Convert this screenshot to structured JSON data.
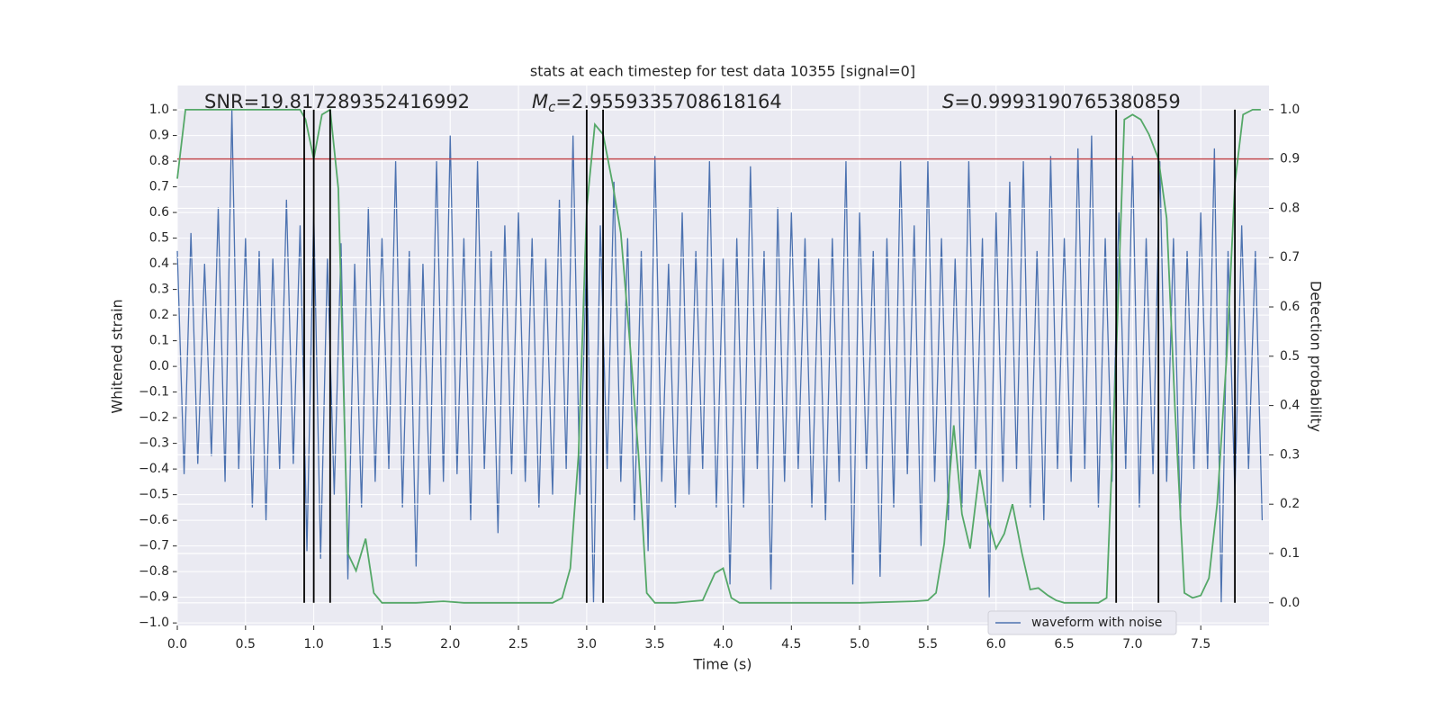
{
  "chart_data": {
    "type": "line",
    "title": "stats at each timestep for test data 10355 [signal=0]",
    "xlabel": "Time (s)",
    "ylabel": "Whitened strain",
    "y2label": "Detection probability",
    "annotations": [
      "SNR=19.817289352416992",
      {
        "symbol": "M",
        "subscript": "c",
        "text": "=2.9559335708618164"
      },
      {
        "symbol": "S",
        "text": "=0.9993190765380859"
      }
    ],
    "xlim": [
      0,
      8
    ],
    "ylim": [
      -1.01,
      1.095
    ],
    "y2lim": [
      -0.046,
      1.049
    ],
    "xticks": [
      {
        "value": 0,
        "label": "0.0"
      },
      0.5,
      {
        "value": 1,
        "label": "1.0"
      },
      1.5,
      {
        "value": 2,
        "label": "2.0"
      },
      2.5,
      {
        "value": 3,
        "label": "3.0"
      },
      3.5,
      {
        "value": 4,
        "label": "4.0"
      },
      4.5,
      {
        "value": 5,
        "label": "5.0"
      },
      5.5,
      {
        "value": 6,
        "label": "6.0"
      },
      6.5,
      {
        "value": 7,
        "label": "7.0"
      },
      7.5
    ],
    "yticks": [
      {
        "value": -1,
        "label": "−1.0"
      },
      {
        "value": -0.9,
        "label": "−0.9"
      },
      {
        "value": -0.8,
        "label": "−0.8"
      },
      {
        "value": -0.7,
        "label": "−0.7"
      },
      {
        "value": -0.6,
        "label": "−0.6"
      },
      {
        "value": -0.5,
        "label": "−0.5"
      },
      {
        "value": -0.4,
        "label": "−0.4"
      },
      {
        "value": -0.3,
        "label": "−0.3"
      },
      {
        "value": -0.2,
        "label": "−0.2"
      },
      {
        "value": -0.1,
        "label": "−0.1"
      },
      {
        "value": 0,
        "label": "0.0"
      },
      0.1,
      0.2,
      0.3,
      0.4,
      0.5,
      0.6,
      0.7,
      0.8,
      0.9,
      {
        "value": 1,
        "label": "1.0"
      }
    ],
    "y2ticks": [
      {
        "value": 0,
        "label": "0.0"
      },
      0.1,
      0.2,
      0.3,
      0.4,
      0.5,
      0.6,
      0.7,
      0.8,
      0.9,
      {
        "value": 1,
        "label": "1.0"
      }
    ],
    "grid": true,
    "legend": "lower right",
    "series": [
      {
        "name": "waveform with noise",
        "color": "#4c72b0",
        "x": [
          0,
          0.05,
          0.1,
          0.15,
          0.2,
          0.25,
          0.3,
          0.35,
          0.4,
          0.45,
          0.5,
          0.55,
          0.6,
          0.65,
          0.7,
          0.75,
          0.8,
          0.85,
          0.9,
          0.95,
          1,
          1.05,
          1.1,
          1.15,
          1.2,
          1.25,
          1.3,
          1.35,
          1.4,
          1.45,
          1.5,
          1.55,
          1.6,
          1.65,
          1.7,
          1.75,
          1.8,
          1.85,
          1.9,
          1.95,
          2,
          2.05,
          2.1,
          2.15,
          2.2,
          2.25,
          2.3,
          2.35,
          2.4,
          2.45,
          2.5,
          2.55,
          2.6,
          2.65,
          2.7,
          2.75,
          2.8,
          2.85,
          2.9,
          2.95,
          3,
          3.05,
          3.1,
          3.15,
          3.2,
          3.25,
          3.3,
          3.35,
          3.4,
          3.45,
          3.5,
          3.55,
          3.6,
          3.65,
          3.7,
          3.75,
          3.8,
          3.85,
          3.9,
          3.95,
          4,
          4.05,
          4.1,
          4.15,
          4.2,
          4.25,
          4.3,
          4.35,
          4.4,
          4.45,
          4.5,
          4.55,
          4.6,
          4.65,
          4.7,
          4.75,
          4.8,
          4.85,
          4.9,
          4.95,
          5,
          5.05,
          5.1,
          5.15,
          5.2,
          5.25,
          5.3,
          5.35,
          5.4,
          5.45,
          5.5,
          5.55,
          5.6,
          5.65,
          5.7,
          5.75,
          5.8,
          5.85,
          5.9,
          5.95,
          6,
          6.05,
          6.1,
          6.15,
          6.2,
          6.25,
          6.3,
          6.35,
          6.4,
          6.45,
          6.5,
          6.55,
          6.6,
          6.65,
          6.7,
          6.75,
          6.8,
          6.85,
          6.9,
          6.95,
          7,
          7.05,
          7.1,
          7.15,
          7.2,
          7.25,
          7.3,
          7.35,
          7.4,
          7.45,
          7.5,
          7.55,
          7.6,
          7.65,
          7.7,
          7.75,
          7.8,
          7.85,
          7.9,
          7.95
        ],
        "values": [
          0.45,
          -0.42,
          0.52,
          -0.38,
          0.4,
          -0.35,
          0.62,
          -0.45,
          1.0,
          -0.4,
          0.5,
          -0.55,
          0.45,
          -0.6,
          0.42,
          -0.4,
          0.65,
          -0.38,
          0.55,
          -0.72,
          0.6,
          -0.75,
          0.42,
          -0.5,
          0.48,
          -0.83,
          0.4,
          -0.55,
          0.62,
          -0.45,
          0.5,
          -0.4,
          0.8,
          -0.55,
          0.45,
          -0.78,
          0.4,
          -0.5,
          0.8,
          -0.45,
          0.9,
          -0.42,
          0.5,
          -0.6,
          0.8,
          -0.4,
          0.45,
          -0.65,
          0.55,
          -0.42,
          0.6,
          -0.45,
          0.5,
          -0.55,
          0.42,
          -0.5,
          0.65,
          -0.4,
          0.9,
          -0.5,
          0.45,
          -0.92,
          0.55,
          -0.4,
          0.72,
          -0.45,
          0.5,
          -0.6,
          0.45,
          -0.72,
          0.82,
          -0.45,
          0.4,
          -0.55,
          0.6,
          -0.5,
          0.45,
          -0.4,
          0.8,
          -0.55,
          0.42,
          -0.85,
          0.5,
          -0.55,
          0.78,
          -0.4,
          0.45,
          -0.87,
          0.62,
          -0.45,
          0.6,
          -0.4,
          0.5,
          -0.55,
          0.42,
          -0.6,
          0.5,
          -0.45,
          0.8,
          -0.85,
          0.6,
          -0.4,
          0.45,
          -0.82,
          0.5,
          -0.55,
          0.8,
          -0.42,
          0.55,
          -0.7,
          0.8,
          -0.45,
          0.5,
          -0.6,
          0.42,
          -0.55,
          0.8,
          -0.4,
          0.5,
          -0.9,
          0.6,
          -0.45,
          0.72,
          -0.4,
          0.8,
          -0.55,
          0.45,
          -0.6,
          0.82,
          -0.4,
          0.5,
          -0.45,
          0.85,
          -0.4,
          0.9,
          -0.55,
          0.5,
          -0.45,
          0.6,
          -0.4,
          0.82,
          -0.55,
          0.5,
          -0.42,
          0.8,
          -0.45,
          0.5,
          -0.6,
          0.45,
          -0.4,
          0.6,
          -0.4,
          0.85,
          -0.92,
          0.45,
          -0.5,
          0.55,
          -0.4,
          0.45,
          -0.6
        ]
      },
      {
        "color": "#55a868",
        "axis": "y2",
        "x": [
          0,
          0.06,
          0.12,
          0.9,
          0.94,
          1.0,
          1.06,
          1.12,
          1.18,
          1.25,
          1.31,
          1.38,
          1.44,
          1.5,
          1.62,
          1.75,
          1.95,
          2.1,
          2.75,
          2.82,
          2.88,
          2.94,
          3.0,
          3.06,
          3.12,
          3.19,
          3.25,
          3.31,
          3.38,
          3.44,
          3.5,
          3.65,
          3.85,
          3.94,
          4.0,
          4.06,
          4.12,
          4.35,
          5.0,
          5.4,
          5.5,
          5.56,
          5.62,
          5.69,
          5.75,
          5.81,
          5.88,
          5.94,
          6.0,
          6.06,
          6.12,
          6.19,
          6.25,
          6.31,
          6.38,
          6.44,
          6.5,
          6.75,
          6.81,
          6.88,
          6.94,
          7.0,
          7.06,
          7.12,
          7.19,
          7.25,
          7.31,
          7.38,
          7.44,
          7.5,
          7.56,
          7.62,
          7.69,
          7.75,
          7.81,
          7.88,
          7.94
        ],
        "values": [
          0.86,
          1.0,
          1.0,
          1.0,
          0.98,
          0.9,
          0.99,
          1.0,
          0.84,
          0.1,
          0.065,
          0.13,
          0.02,
          0.0,
          0.0,
          0.0,
          0.003,
          0.0,
          0.0,
          0.01,
          0.07,
          0.3,
          0.8,
          0.97,
          0.95,
          0.85,
          0.75,
          0.55,
          0.3,
          0.02,
          0.0,
          0.0,
          0.005,
          0.06,
          0.07,
          0.01,
          0.0,
          0.0,
          0.0,
          0.003,
          0.005,
          0.02,
          0.12,
          0.36,
          0.18,
          0.11,
          0.27,
          0.17,
          0.11,
          0.14,
          0.2,
          0.1,
          0.027,
          0.03,
          0.015,
          0.005,
          0.0,
          0.0,
          0.01,
          0.5,
          0.98,
          0.99,
          0.98,
          0.95,
          0.9,
          0.78,
          0.4,
          0.02,
          0.01,
          0.015,
          0.05,
          0.2,
          0.5,
          0.85,
          0.99,
          1.0,
          1.0
        ]
      }
    ],
    "hline": {
      "value": 0.9,
      "axis": "y2",
      "color": "#c44e52"
    },
    "vlines": {
      "x": [
        0.93,
        1.0,
        1.12,
        3.0,
        3.12,
        6.88,
        7.19,
        7.75
      ],
      "ymin": 0,
      "ymax": 1,
      "axis": "y2",
      "color": "#000000"
    }
  }
}
